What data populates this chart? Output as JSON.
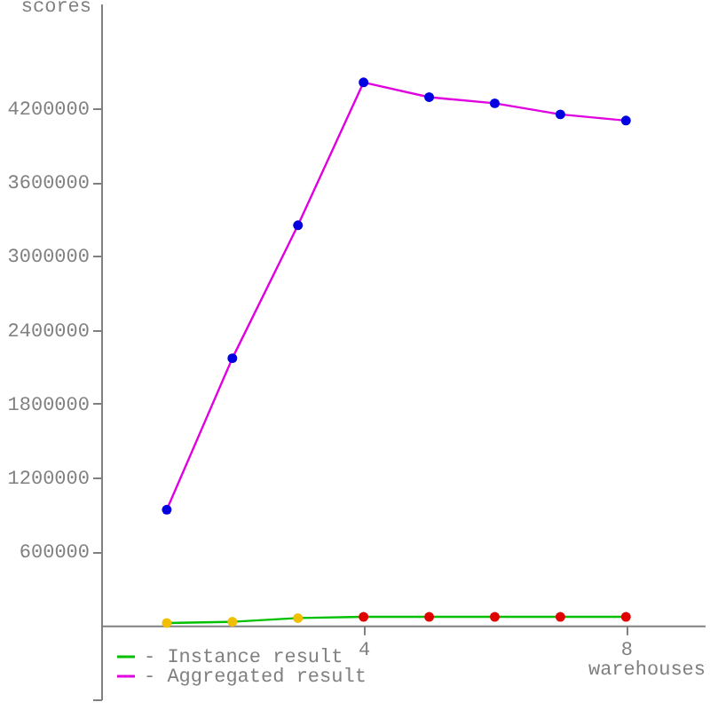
{
  "chart_data": {
    "type": "line",
    "xlabel": "warehouses",
    "ylabel": "scores",
    "x": [
      1,
      2,
      3,
      4,
      5,
      6,
      7,
      8
    ],
    "series": [
      {
        "name": "- Instance result",
        "color": "#00c000",
        "colors": [
          "#f0c000",
          "#f0c000",
          "#f0c000",
          "#e00000",
          "#e00000",
          "#e00000",
          "#e00000",
          "#e00000"
        ],
        "values": [
          20000,
          30000,
          60000,
          70000,
          70000,
          70000,
          70000,
          70000
        ]
      },
      {
        "name": "- Aggregated result",
        "color": "#e000e0",
        "colors": [
          "#0000e0",
          "#0000e0",
          "#0000e0",
          "#0000e0",
          "#0000e0",
          "#0000e0",
          "#0000e0",
          "#0000e0"
        ],
        "values": [
          940000,
          2170000,
          3250000,
          4410000,
          4290000,
          4240000,
          4150000,
          4100000
        ]
      }
    ],
    "xlim": [
      0,
      9.2
    ],
    "xticks": [
      4,
      8
    ],
    "ylim": [
      -600000,
      5050000
    ],
    "yticks": [
      {
        "value": -600000,
        "label": null
      },
      600000,
      1200000,
      1800000,
      2400000,
      3000000,
      3600000,
      4200000
    ],
    "marker": "circle",
    "line_style": "solid",
    "grid": false,
    "legend": "bottom left"
  }
}
